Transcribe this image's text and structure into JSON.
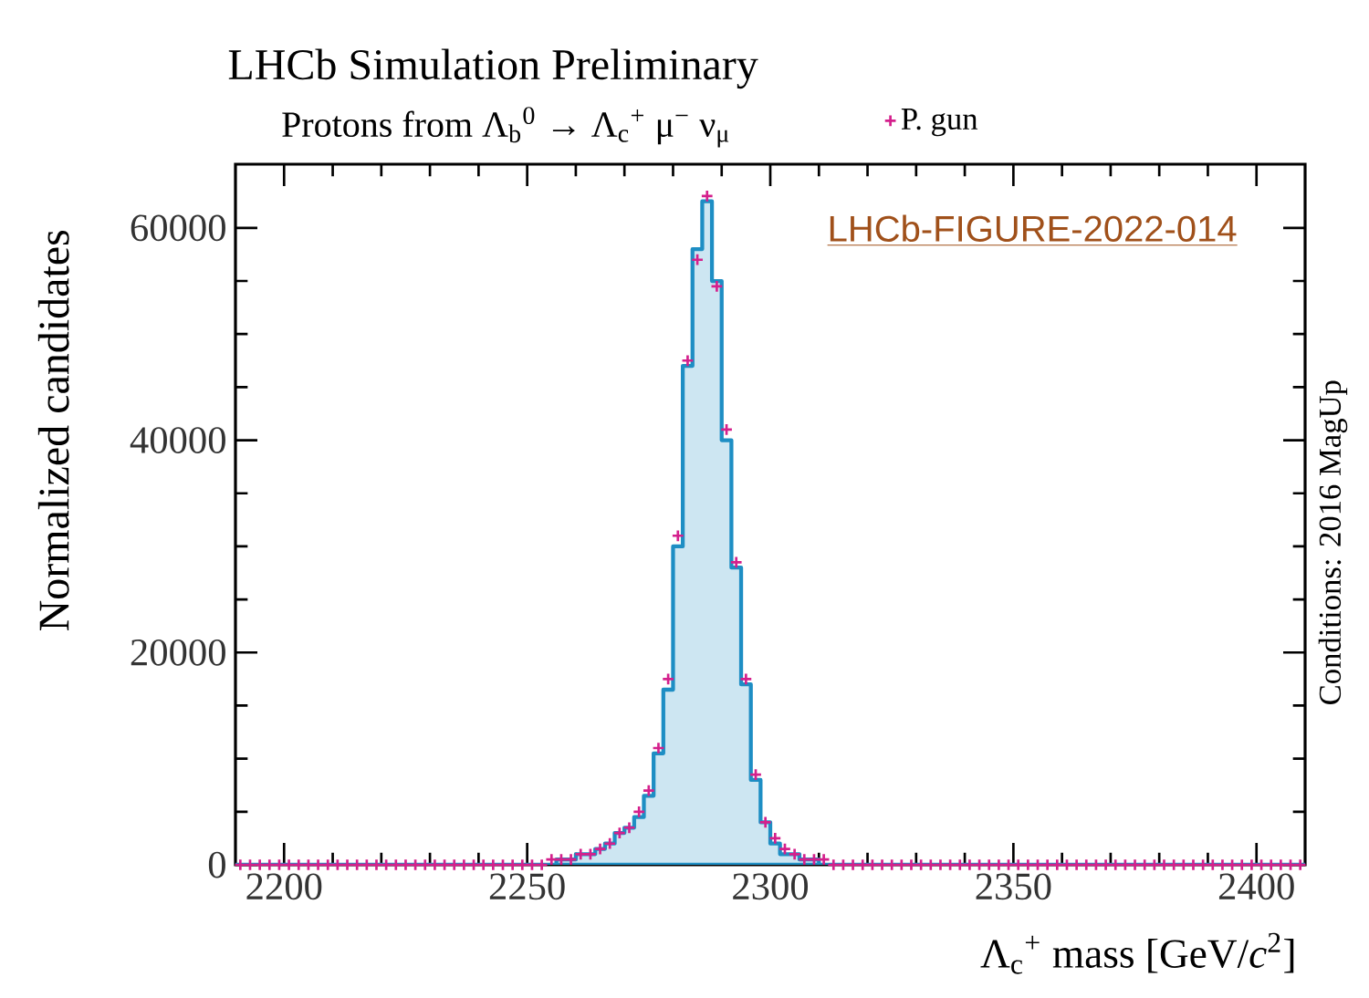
{
  "chart_data": {
    "type": "histogram",
    "title": "LHCb Simulation Preliminary",
    "subtitle": "Protons from Λ$_{b}$$^{0}$ → Λ$_{c}$$^{+}$ μ$^{−}$ ν$_{μ}$",
    "xlabel": "Λ$_{c}$$^{+}$ mass [GeV/*c*$^{2}$]",
    "ylabel": "Normalized candidates",
    "annotations": [
      "LHCb-FIGURE-2022-014",
      "Conditions: 2016 MagUp"
    ],
    "xlim": [
      2190,
      2410
    ],
    "xticks": [
      2200,
      2250,
      2300,
      2350,
      2400
    ],
    "ylim": [
      0,
      66000
    ],
    "yticks": [
      0,
      20000,
      40000,
      60000
    ],
    "legend": "top right",
    "marker": "cross",
    "bins": [
      2190,
      2192,
      2194,
      2196,
      2198,
      2200,
      2202,
      2204,
      2206,
      2208,
      2210,
      2212,
      2214,
      2216,
      2218,
      2220,
      2222,
      2224,
      2226,
      2228,
      2230,
      2232,
      2234,
      2236,
      2238,
      2240,
      2242,
      2244,
      2246,
      2248,
      2250,
      2252,
      2254,
      2256,
      2258,
      2260,
      2262,
      2264,
      2266,
      2268,
      2270,
      2272,
      2274,
      2276,
      2278,
      2280,
      2282,
      2284,
      2286,
      2288,
      2290,
      2292,
      2294,
      2296,
      2298,
      2300,
      2302,
      2304,
      2306,
      2308,
      2310,
      2312,
      2314,
      2316,
      2318,
      2320,
      2322,
      2324,
      2326,
      2328,
      2330,
      2332,
      2334,
      2336,
      2338,
      2340,
      2342,
      2344,
      2346,
      2348,
      2350,
      2352,
      2354,
      2356,
      2358,
      2360,
      2362,
      2364,
      2366,
      2368,
      2370,
      2372,
      2374,
      2376,
      2378,
      2380,
      2382,
      2384,
      2386,
      2388,
      2390,
      2392,
      2394,
      2396,
      2398,
      2400,
      2402,
      2404,
      2406,
      2408,
      2410
    ],
    "series": [
      {
        "color": "#cde6f2",
        "values": [
          0,
          0,
          0,
          0,
          0,
          0,
          0,
          0,
          0,
          0,
          0,
          0,
          0,
          0,
          0,
          0,
          0,
          0,
          0,
          0,
          0,
          0,
          0,
          0,
          0,
          0,
          0,
          0,
          0,
          0,
          0,
          0,
          0,
          500,
          500,
          1000,
          1000,
          1500,
          2000,
          3000,
          3500,
          4500,
          6500,
          10500,
          16500,
          30000,
          47000,
          58000,
          62500,
          55000,
          40000,
          28000,
          17000,
          8000,
          4000,
          2000,
          1000,
          1000,
          500,
          500,
          0,
          0,
          0,
          0,
          0,
          0,
          0,
          0,
          0,
          0,
          0,
          0,
          0,
          0,
          0,
          0,
          0,
          0,
          0,
          0,
          0,
          0,
          0,
          0,
          0,
          0,
          0,
          0,
          0,
          0,
          0,
          0,
          0,
          0,
          0,
          0,
          0,
          0,
          0,
          0,
          0,
          0,
          0,
          0,
          0,
          0,
          0,
          0,
          0,
          0
        ]
      },
      {
        "type": "scatter",
        "name": "P. gun",
        "color": "#d4208c",
        "x": [
          2191,
          2193,
          2195,
          2197,
          2199,
          2201,
          2203,
          2205,
          2207,
          2209,
          2211,
          2213,
          2215,
          2217,
          2219,
          2221,
          2223,
          2225,
          2227,
          2229,
          2231,
          2233,
          2235,
          2237,
          2239,
          2241,
          2243,
          2245,
          2247,
          2249,
          2251,
          2253,
          2255,
          2257,
          2259,
          2261,
          2263,
          2265,
          2267,
          2269,
          2271,
          2273,
          2275,
          2277,
          2279,
          2281,
          2283,
          2285,
          2287,
          2289,
          2291,
          2293,
          2295,
          2297,
          2299,
          2301,
          2303,
          2305,
          2307,
          2309,
          2311,
          2313,
          2315,
          2317,
          2319,
          2321,
          2323,
          2325,
          2327,
          2329,
          2331,
          2333,
          2335,
          2337,
          2339,
          2341,
          2343,
          2345,
          2347,
          2349,
          2351,
          2353,
          2355,
          2357,
          2359,
          2361,
          2363,
          2365,
          2367,
          2369,
          2371,
          2373,
          2375,
          2377,
          2379,
          2381,
          2383,
          2385,
          2387,
          2389,
          2391,
          2393,
          2395,
          2397,
          2399,
          2401,
          2403,
          2405,
          2407,
          2409
        ],
        "values": [
          0,
          0,
          0,
          0,
          0,
          0,
          0,
          0,
          0,
          0,
          0,
          0,
          0,
          0,
          0,
          0,
          0,
          0,
          0,
          0,
          0,
          0,
          0,
          0,
          0,
          0,
          0,
          0,
          0,
          0,
          0,
          0,
          500,
          500,
          500,
          1000,
          1000,
          1500,
          2000,
          3000,
          3500,
          5000,
          7000,
          11000,
          17500,
          31000,
          47500,
          57000,
          63000,
          54500,
          41000,
          28500,
          17500,
          8500,
          4000,
          2500,
          1500,
          1000,
          500,
          500,
          500,
          0,
          0,
          0,
          0,
          0,
          0,
          0,
          0,
          0,
          0,
          0,
          0,
          0,
          0,
          0,
          0,
          0,
          0,
          0,
          0,
          0,
          0,
          0,
          0,
          0,
          0,
          0,
          0,
          0,
          0,
          0,
          0,
          0,
          0,
          0,
          0,
          0,
          0,
          0,
          0,
          0,
          0,
          0,
          0,
          0,
          0,
          0,
          0,
          0
        ]
      }
    ]
  }
}
